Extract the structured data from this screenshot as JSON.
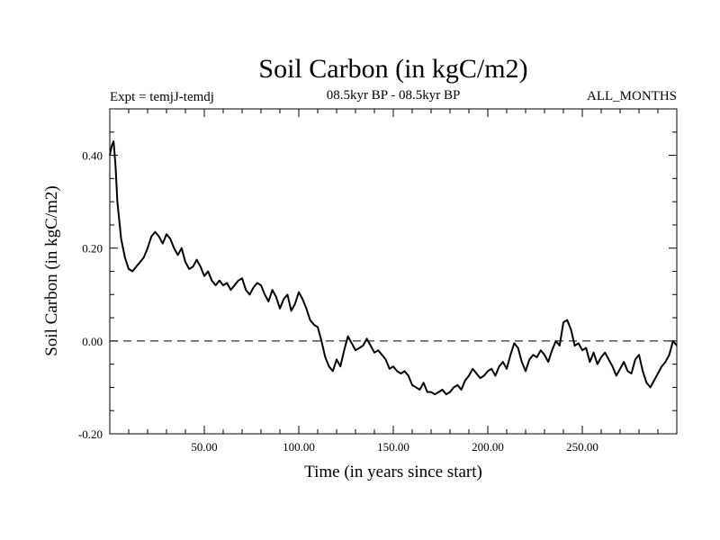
{
  "chart_data": {
    "type": "line",
    "title": "Soil Carbon (in kgC/m2)",
    "subtitle_left": "Expt = temjJ-temdj",
    "subtitle_center": "08.5kyr BP - 08.5kyr BP",
    "subtitle_right": "ALL_MONTHS",
    "xlabel": "Time (in years since start)",
    "ylabel": "Soil Carbon (in kgC/m2)",
    "xlim": [
      0,
      300
    ],
    "ylim": [
      -0.2,
      0.5
    ],
    "xticks": [
      50,
      100,
      150,
      200,
      250
    ],
    "xtick_labels": [
      "50.00",
      "100.00",
      "150.00",
      "200.00",
      "250.00"
    ],
    "yticks": [
      -0.2,
      0,
      0.2,
      0.4
    ],
    "ytick_labels": [
      "-0.20",
      "0.00",
      "0.20",
      "0.40"
    ],
    "reference_line": {
      "y": 0,
      "style": "dashed"
    },
    "series": [
      {
        "name": "Soil Carbon",
        "x": [
          0,
          1,
          2,
          3,
          4,
          6,
          8,
          10,
          12,
          14,
          16,
          18,
          20,
          22,
          24,
          26,
          28,
          30,
          32,
          34,
          36,
          38,
          40,
          42,
          44,
          46,
          48,
          50,
          52,
          54,
          56,
          58,
          60,
          62,
          64,
          66,
          68,
          70,
          72,
          74,
          76,
          78,
          80,
          82,
          84,
          86,
          88,
          90,
          92,
          94,
          96,
          98,
          100,
          102,
          104,
          106,
          108,
          110,
          112,
          114,
          116,
          118,
          120,
          122,
          124,
          126,
          128,
          130,
          132,
          134,
          136,
          138,
          140,
          142,
          144,
          146,
          148,
          150,
          152,
          154,
          156,
          158,
          160,
          162,
          164,
          166,
          168,
          170,
          172,
          174,
          176,
          178,
          180,
          182,
          184,
          186,
          188,
          190,
          192,
          194,
          196,
          198,
          200,
          202,
          204,
          206,
          208,
          210,
          212,
          214,
          216,
          218,
          220,
          222,
          224,
          226,
          228,
          230,
          232,
          234,
          236,
          238,
          240,
          242,
          244,
          246,
          248,
          250,
          252,
          254,
          256,
          258,
          260,
          262,
          264,
          266,
          268,
          270,
          272,
          274,
          276,
          278,
          280,
          282,
          284,
          286,
          288,
          290,
          292,
          294,
          296,
          298,
          300
        ],
        "values": [
          0.4,
          0.42,
          0.43,
          0.38,
          0.3,
          0.22,
          0.18,
          0.155,
          0.15,
          0.16,
          0.17,
          0.18,
          0.2,
          0.225,
          0.235,
          0.225,
          0.21,
          0.23,
          0.22,
          0.2,
          0.185,
          0.2,
          0.17,
          0.155,
          0.16,
          0.175,
          0.16,
          0.14,
          0.15,
          0.13,
          0.12,
          0.13,
          0.12,
          0.125,
          0.11,
          0.12,
          0.13,
          0.135,
          0.11,
          0.1,
          0.115,
          0.125,
          0.12,
          0.1,
          0.085,
          0.11,
          0.095,
          0.07,
          0.09,
          0.1,
          0.065,
          0.08,
          0.105,
          0.09,
          0.07,
          0.045,
          0.035,
          0.03,
          0.0,
          -0.035,
          -0.055,
          -0.065,
          -0.04,
          -0.055,
          -0.02,
          0.01,
          -0.005,
          -0.02,
          -0.015,
          -0.01,
          0.005,
          -0.01,
          -0.025,
          -0.02,
          -0.03,
          -0.04,
          -0.06,
          -0.055,
          -0.065,
          -0.07,
          -0.065,
          -0.075,
          -0.095,
          -0.1,
          -0.105,
          -0.09,
          -0.11,
          -0.11,
          -0.115,
          -0.11,
          -0.105,
          -0.115,
          -0.11,
          -0.1,
          -0.095,
          -0.105,
          -0.085,
          -0.075,
          -0.06,
          -0.07,
          -0.08,
          -0.075,
          -0.065,
          -0.06,
          -0.075,
          -0.055,
          -0.045,
          -0.06,
          -0.03,
          -0.005,
          -0.015,
          -0.045,
          -0.065,
          -0.04,
          -0.03,
          -0.035,
          -0.02,
          -0.03,
          -0.045,
          -0.02,
          0.0,
          -0.01,
          0.04,
          0.045,
          0.025,
          -0.01,
          -0.005,
          -0.02,
          -0.015,
          -0.045,
          -0.025,
          -0.05,
          -0.035,
          -0.025,
          -0.04,
          -0.055,
          -0.075,
          -0.06,
          -0.045,
          -0.065,
          -0.07,
          -0.04,
          -0.03,
          -0.065,
          -0.09,
          -0.1,
          -0.085,
          -0.07,
          -0.055,
          -0.045,
          -0.03,
          0.0,
          -0.01
        ]
      }
    ]
  }
}
